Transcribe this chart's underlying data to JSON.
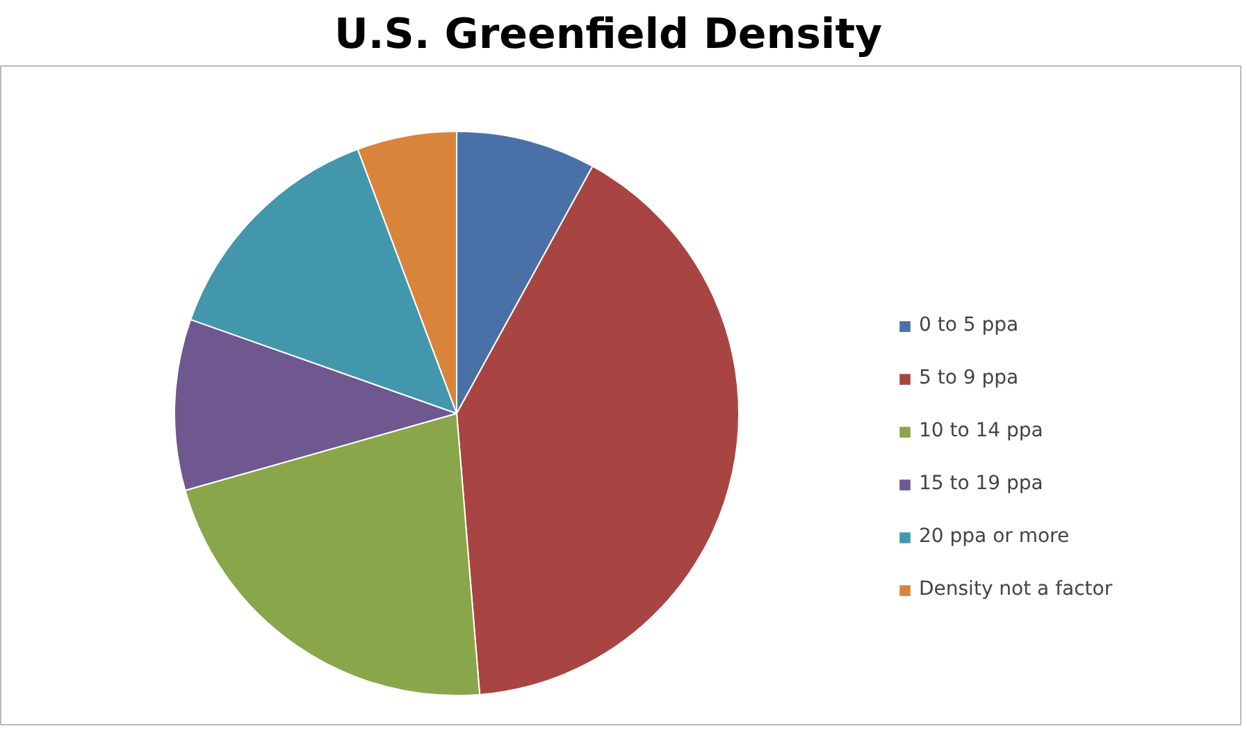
{
  "chart_data": {
    "type": "pie",
    "title": "U.S. Greenfield Density",
    "categories": [
      "0 to 5 ppa",
      "5 to 9 ppa",
      "10 to 14 ppa",
      "15 to 19 ppa",
      "20 ppa or more",
      "Density not a factor"
    ],
    "values": [
      8,
      40.7,
      21.9,
      9.8,
      13.9,
      5.7
    ],
    "colors": [
      "#4a71a7",
      "#a84543",
      "#89a64b",
      "#6f578f",
      "#4297ad",
      "#d9843b"
    ],
    "legend": "right"
  }
}
